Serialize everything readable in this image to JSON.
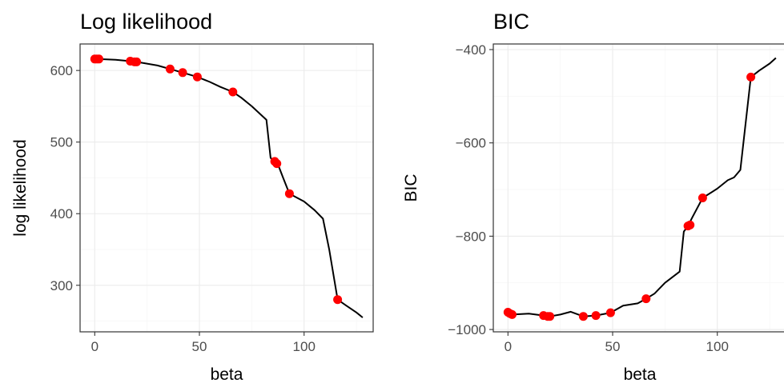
{
  "chart_data": [
    {
      "type": "line",
      "title": "Log likelihood",
      "xlabel": "beta",
      "ylabel": "log likelihood",
      "xlim": [
        -7,
        133
      ],
      "ylim": [
        235,
        637
      ],
      "xticks": [
        0,
        50,
        100
      ],
      "xtick_labels": [
        "0",
        "50",
        "100"
      ],
      "yticks": [
        300,
        400,
        500,
        600
      ],
      "ytick_labels": [
        "300",
        "400",
        "500",
        "600"
      ],
      "grid": true,
      "line_color": "#000000",
      "point_color": "#ff0000",
      "line": {
        "x": [
          0,
          2,
          10,
          17,
          20,
          30,
          36,
          42,
          49,
          55,
          60,
          66,
          70,
          75,
          82,
          84,
          86,
          88,
          90,
          93,
          100,
          105,
          109,
          112,
          116,
          120,
          125,
          128
        ],
        "y": [
          616,
          616,
          615,
          613,
          612,
          607,
          602,
          597,
          591,
          584,
          577,
          570,
          562,
          550,
          531,
          478,
          472,
          465,
          450,
          428,
          417,
          405,
          393,
          350,
          280,
          272,
          262,
          255
        ]
      },
      "points": {
        "x": [
          0,
          1,
          2,
          17,
          19,
          20,
          36,
          42,
          49,
          66,
          86,
          87,
          93,
          116
        ],
        "y": [
          616,
          616,
          616,
          613,
          612,
          612,
          602,
          597,
          591,
          570,
          473,
          470,
          428,
          280
        ]
      }
    },
    {
      "type": "line",
      "title": "BIC",
      "xlabel": "beta",
      "ylabel": "BIC",
      "xlim": [
        -7,
        133
      ],
      "ylim": [
        -1005,
        -388
      ],
      "xticks": [
        0,
        50,
        100
      ],
      "xtick_labels": [
        "0",
        "50",
        "100"
      ],
      "yticks": [
        -1000,
        -800,
        -600,
        -400
      ],
      "ytick_labels": [
        "−1000",
        "−800",
        "−600",
        "−400"
      ],
      "grid": true,
      "line_color": "#000000",
      "point_color": "#ff0000",
      "line": {
        "x": [
          0,
          2,
          10,
          17,
          20,
          25,
          30,
          36,
          42,
          49,
          55,
          62,
          66,
          70,
          75,
          82,
          84,
          86,
          88,
          93,
          100,
          105,
          108,
          111,
          116,
          120,
          125,
          128
        ],
        "y": [
          -963,
          -968,
          -966,
          -970,
          -972,
          -968,
          -962,
          -972,
          -970,
          -964,
          -949,
          -944,
          -934,
          -923,
          -900,
          -876,
          -790,
          -778,
          -760,
          -718,
          -698,
          -680,
          -674,
          -658,
          -459,
          -445,
          -430,
          -418
        ]
      },
      "points": {
        "x": [
          0,
          1,
          2,
          17,
          19,
          20,
          36,
          42,
          49,
          66,
          86,
          87,
          93,
          116
        ],
        "y": [
          -963,
          -966,
          -968,
          -970,
          -972,
          -972,
          -972,
          -970,
          -964,
          -934,
          -778,
          -776,
          -718,
          -459
        ]
      }
    }
  ]
}
